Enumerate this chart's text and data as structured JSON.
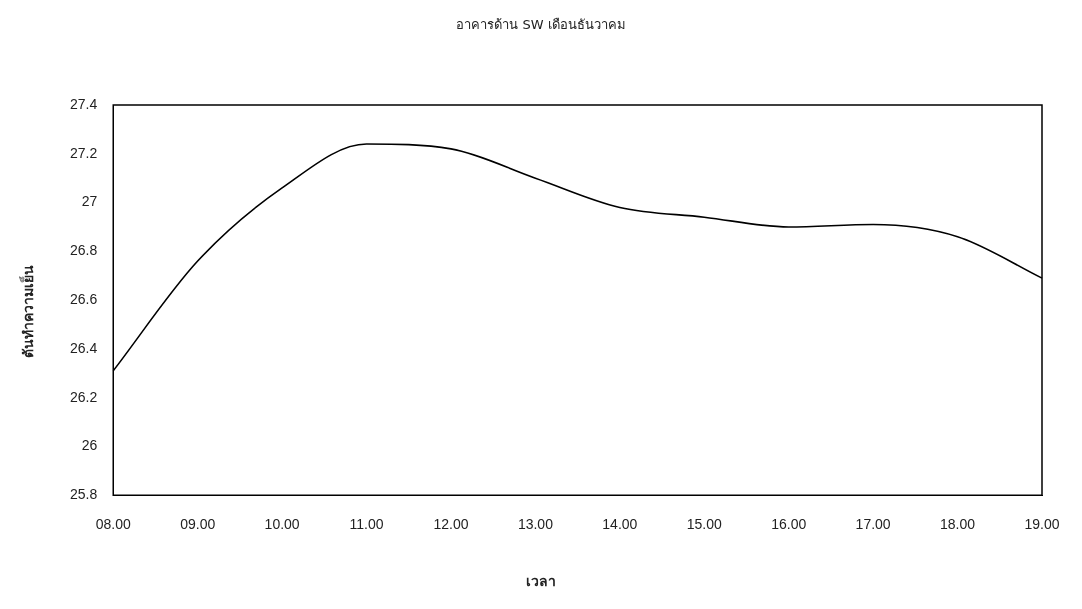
{
  "chart_data": {
    "type": "line",
    "title": "อาคารด้าน SW เดือนธันวาคม",
    "xlabel": "เวลา",
    "ylabel": "ตันทำความเย็น",
    "categories": [
      "08.00",
      "09.00",
      "10.00",
      "11.00",
      "12.00",
      "13.00",
      "14.00",
      "15.00",
      "16.00",
      "17.00",
      "18.00",
      "19.00"
    ],
    "series": [
      {
        "color": "#000000",
        "values": [
          26.31,
          26.76,
          27.06,
          27.24,
          27.22,
          27.1,
          26.98,
          26.94,
          26.9,
          26.91,
          26.86,
          26.69
        ]
      }
    ],
    "ylim": [
      25.8,
      27.4
    ],
    "yticks": [
      25.8,
      26,
      26.2,
      26.4,
      26.6,
      26.8,
      27,
      27.2,
      27.4
    ],
    "grid": false,
    "legend": false,
    "marker": "none",
    "line_style": "solid"
  }
}
